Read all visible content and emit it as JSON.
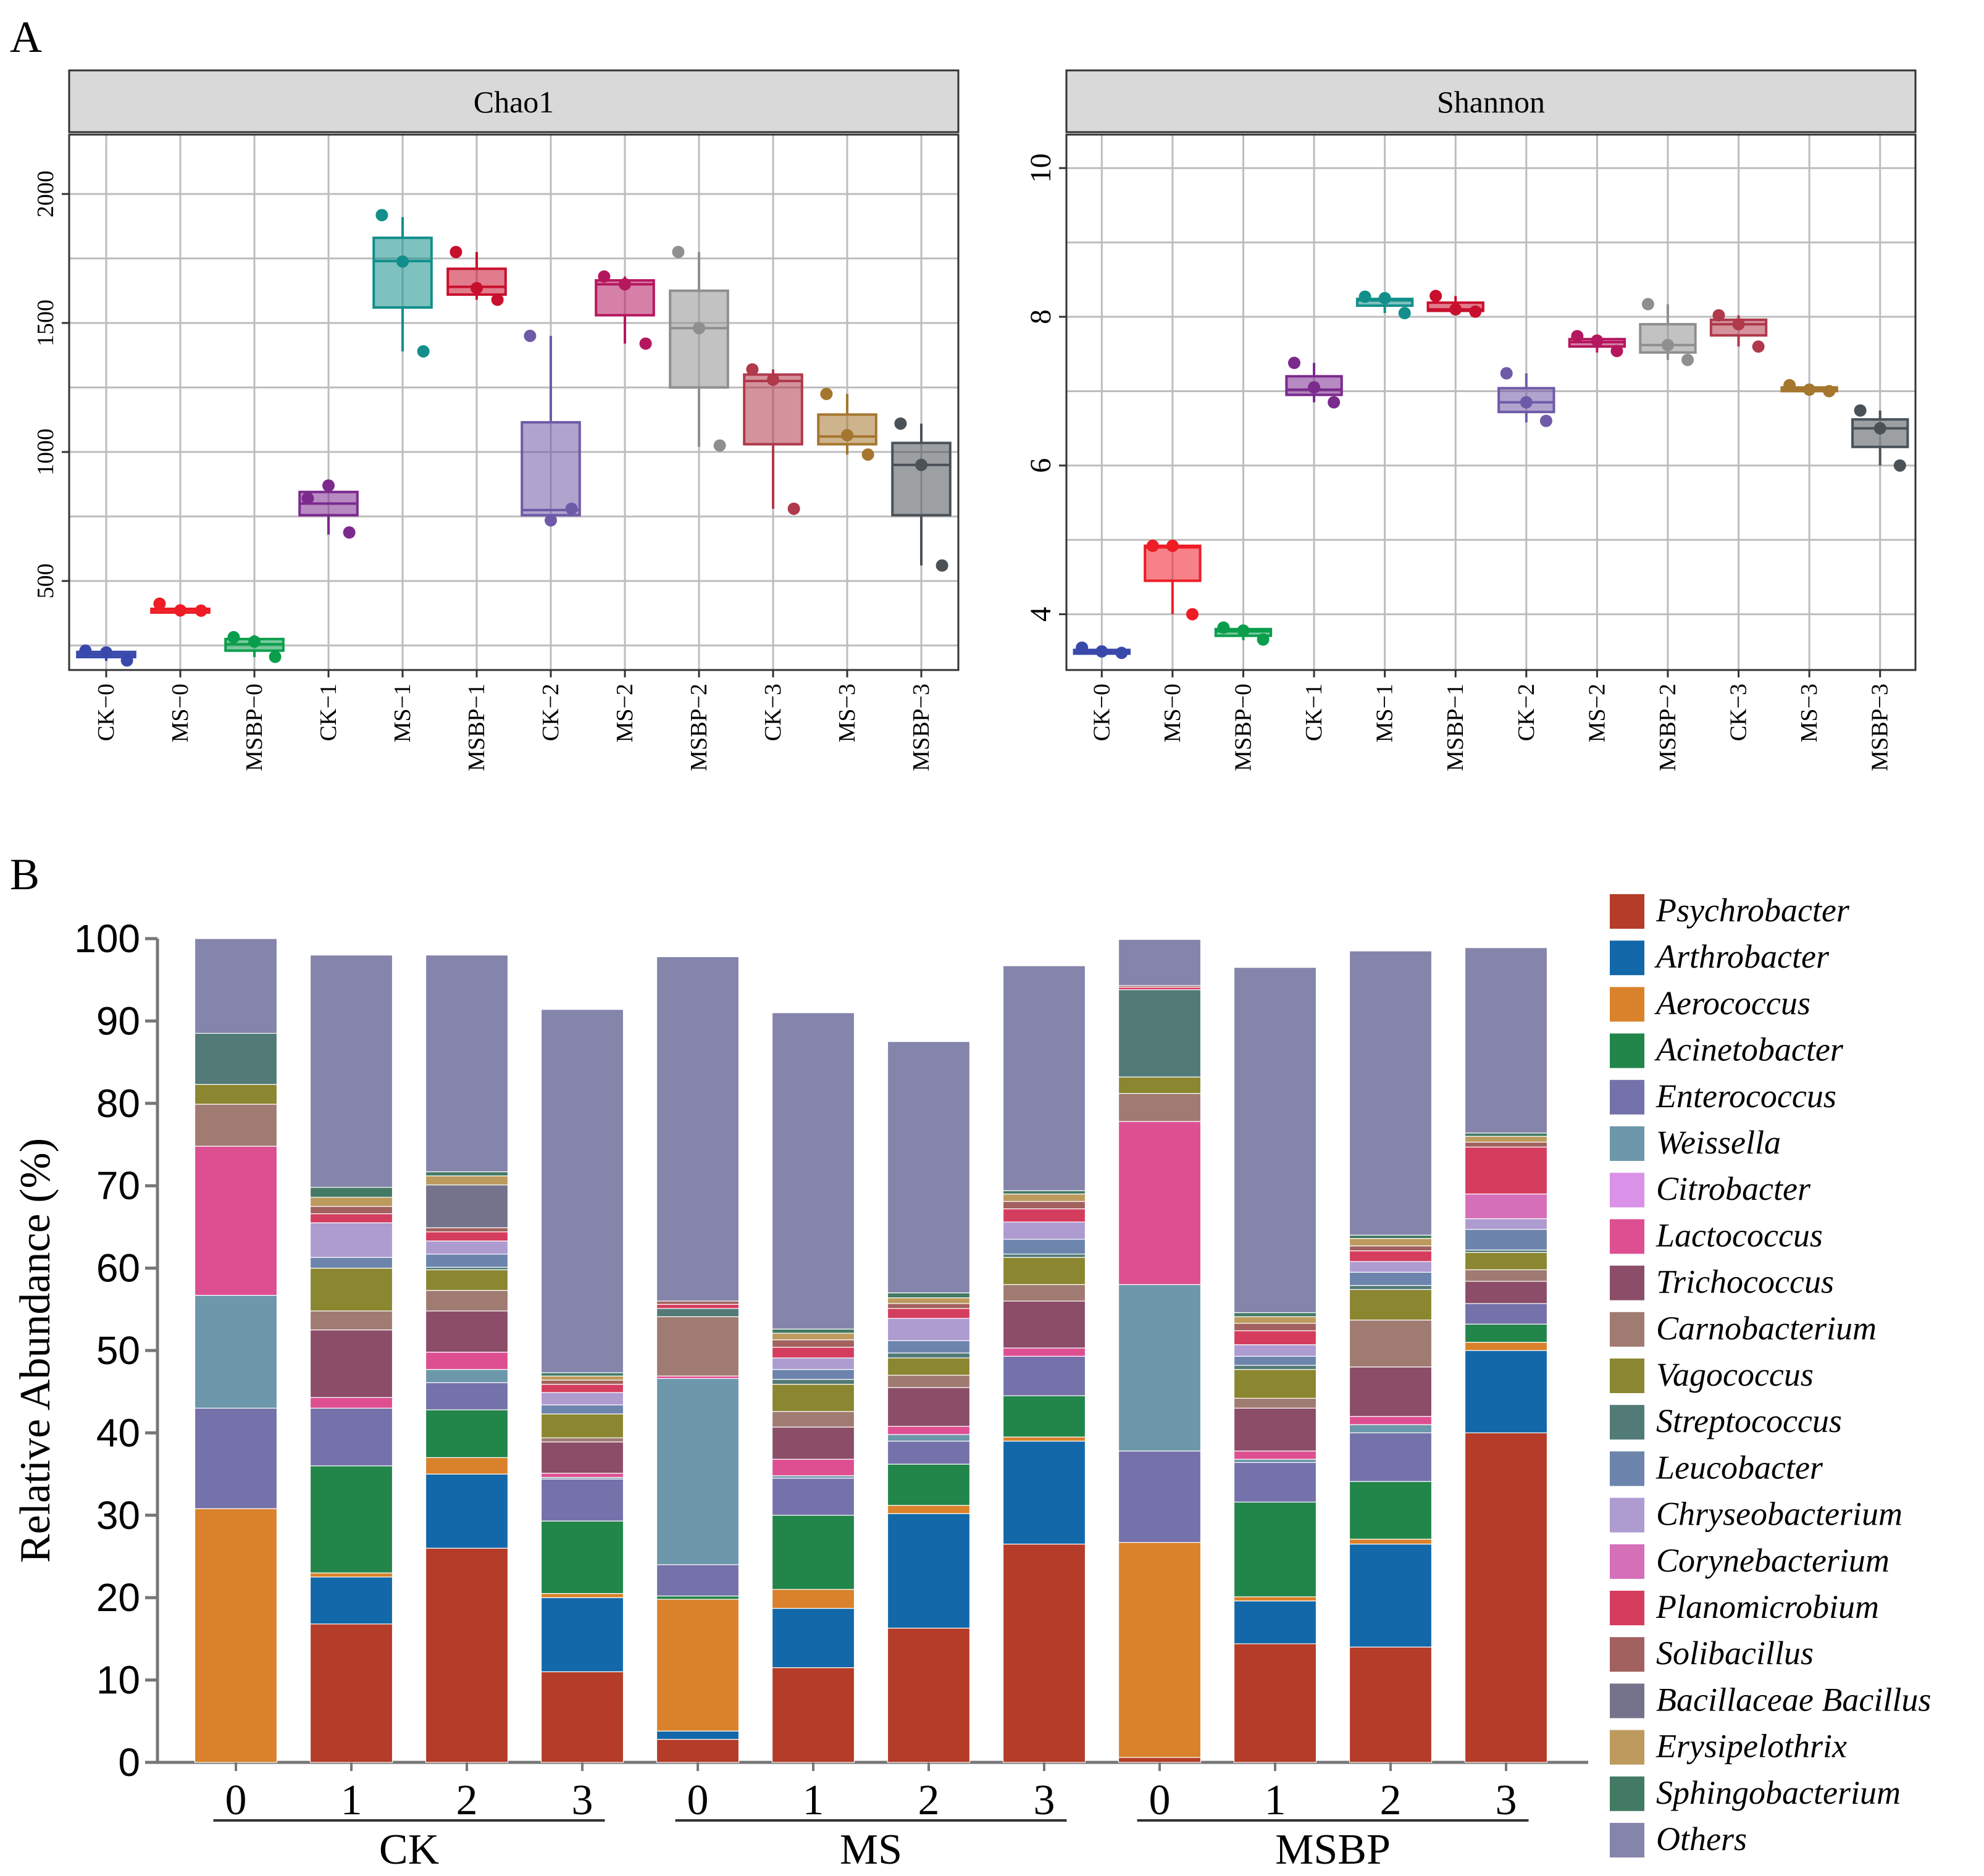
{
  "panels": {
    "a": "A",
    "b": "B"
  },
  "chart_data": [
    {
      "type": "box",
      "panel": "A",
      "title": "Chao1",
      "ylim": [
        155,
        2230
      ],
      "yticks": [
        500,
        1000,
        1500,
        2000
      ],
      "categories": [
        "CK−0",
        "MS−0",
        "MSBP−0",
        "CK−1",
        "MS−1",
        "MSBP−1",
        "CK−2",
        "MS−2",
        "MSBP−2",
        "CK−3",
        "MS−3",
        "MSBP−3"
      ],
      "colors": [
        "#3949ab",
        "#ee1c25",
        "#0a9e4c",
        "#7b2a8e",
        "#128f8a",
        "#c8102e",
        "#6f5aa8",
        "#b5175f",
        "#8f8f8f",
        "#b0394b",
        "#a5762e",
        "#4a5258"
      ],
      "boxes": [
        {
          "min": 190,
          "q1": 205,
          "median": 215,
          "q3": 225,
          "max": 230,
          "points": [
            230,
            192,
            223
          ]
        },
        {
          "min": 385,
          "q1": 385,
          "median": 388,
          "q3": 392,
          "max": 410,
          "points": [
            412,
            385,
            386
          ]
        },
        {
          "min": 205,
          "q1": 230,
          "median": 255,
          "q3": 275,
          "max": 290,
          "points": [
            282,
            206,
            265
          ]
        },
        {
          "min": 680,
          "q1": 755,
          "median": 800,
          "q3": 845,
          "max": 870,
          "points": [
            820,
            688,
            870
          ]
        },
        {
          "min": 1390,
          "q1": 1560,
          "median": 1740,
          "q3": 1830,
          "max": 1910,
          "points": [
            1918,
            1390,
            1738
          ]
        },
        {
          "min": 1590,
          "q1": 1610,
          "median": 1640,
          "q3": 1710,
          "max": 1775,
          "points": [
            1775,
            1590,
            1635
          ]
        },
        {
          "min": 730,
          "q1": 755,
          "median": 775,
          "q3": 1115,
          "max": 1450,
          "points": [
            1450,
            780,
            735
          ]
        },
        {
          "min": 1420,
          "q1": 1530,
          "median": 1650,
          "q3": 1665,
          "max": 1680,
          "points": [
            1680,
            1420,
            1650
          ]
        },
        {
          "min": 1020,
          "q1": 1250,
          "median": 1480,
          "q3": 1625,
          "max": 1775,
          "points": [
            1775,
            1025,
            1480
          ]
        },
        {
          "min": 780,
          "q1": 1030,
          "median": 1275,
          "q3": 1300,
          "max": 1320,
          "points": [
            1320,
            780,
            1280
          ]
        },
        {
          "min": 990,
          "q1": 1030,
          "median": 1060,
          "q3": 1145,
          "max": 1225,
          "points": [
            1225,
            990,
            1065
          ]
        },
        {
          "min": 560,
          "q1": 755,
          "median": 950,
          "q3": 1035,
          "max": 1110,
          "points": [
            1110,
            560,
            950
          ]
        }
      ]
    },
    {
      "type": "box",
      "panel": "A",
      "title": "Shannon",
      "ylim": [
        3.25,
        10.45
      ],
      "yticks": [
        4,
        6,
        8,
        10
      ],
      "categories": [
        "CK−0",
        "MS−0",
        "MSBP−0",
        "CK−1",
        "MS−1",
        "MSBP−1",
        "CK−2",
        "MS−2",
        "MSBP−2",
        "CK−3",
        "MS−3",
        "MSBP−3"
      ],
      "colors": [
        "#3949ab",
        "#ee1c25",
        "#0a9e4c",
        "#7b2a8e",
        "#128f8a",
        "#c8102e",
        "#6f5aa8",
        "#b5175f",
        "#8f8f8f",
        "#b0394b",
        "#a5762e",
        "#4a5258"
      ],
      "boxes": [
        {
          "min": 3.48,
          "q1": 3.49,
          "median": 3.5,
          "q3": 3.52,
          "max": 3.55,
          "points": [
            3.55,
            3.48,
            3.5
          ]
        },
        {
          "min": 4.0,
          "q1": 4.45,
          "median": 4.9,
          "q3": 4.92,
          "max": 4.92,
          "points": [
            4.92,
            4.0,
            4.92
          ]
        },
        {
          "min": 3.65,
          "q1": 3.71,
          "median": 3.77,
          "q3": 3.8,
          "max": 3.82,
          "points": [
            3.82,
            3.66,
            3.78
          ]
        },
        {
          "min": 6.85,
          "q1": 6.95,
          "median": 7.02,
          "q3": 7.2,
          "max": 7.38,
          "points": [
            7.38,
            6.85,
            7.05
          ]
        },
        {
          "min": 8.05,
          "q1": 8.15,
          "median": 8.22,
          "q3": 8.24,
          "max": 8.27,
          "points": [
            8.27,
            8.05,
            8.25
          ]
        },
        {
          "min": 8.07,
          "q1": 8.08,
          "median": 8.1,
          "q3": 8.19,
          "max": 8.28,
          "points": [
            8.28,
            8.07,
            8.1
          ]
        },
        {
          "min": 6.58,
          "q1": 6.72,
          "median": 6.85,
          "q3": 7.04,
          "max": 7.24,
          "points": [
            7.24,
            6.6,
            6.85
          ]
        },
        {
          "min": 7.52,
          "q1": 7.6,
          "median": 7.66,
          "q3": 7.7,
          "max": 7.74,
          "points": [
            7.74,
            7.54,
            7.68
          ]
        },
        {
          "min": 7.42,
          "q1": 7.52,
          "median": 7.62,
          "q3": 7.9,
          "max": 8.17,
          "points": [
            8.17,
            7.42,
            7.62
          ]
        },
        {
          "min": 7.6,
          "q1": 7.75,
          "median": 7.9,
          "q3": 7.96,
          "max": 8.02,
          "points": [
            8.02,
            7.6,
            7.9
          ]
        },
        {
          "min": 7.0,
          "q1": 7.02,
          "median": 7.03,
          "q3": 7.05,
          "max": 7.08,
          "points": [
            7.08,
            7.0,
            7.02
          ]
        },
        {
          "min": 6.0,
          "q1": 6.25,
          "median": 6.5,
          "q3": 6.62,
          "max": 6.74,
          "points": [
            6.74,
            6.0,
            6.5
          ]
        }
      ]
    },
    {
      "type": "stacked_bar",
      "panel": "B",
      "ylabel": "Relative Abundance (%)",
      "ylim": [
        0,
        100
      ],
      "yticks": [
        0,
        10,
        20,
        30,
        40,
        50,
        60,
        70,
        80,
        90,
        100
      ],
      "categories": [
        "0",
        "1",
        "2",
        "3",
        "0",
        "1",
        "2",
        "3",
        "0",
        "1",
        "2",
        "3"
      ],
      "groups": [
        {
          "label": "CK",
          "span": [
            0,
            3
          ]
        },
        {
          "label": "MS",
          "span": [
            4,
            7
          ]
        },
        {
          "label": "MSBP",
          "span": [
            8,
            11
          ]
        }
      ],
      "series": [
        {
          "name": "Psychrobacter",
          "color": "#b43c28",
          "values": [
            0,
            16.8,
            26,
            11,
            2.8,
            11.5,
            16.3,
            26.5,
            0.6,
            14.4,
            14,
            40
          ]
        },
        {
          "name": "Arthrobacter",
          "color": "#1368a9",
          "values": [
            0,
            5.7,
            9,
            9,
            1,
            7.2,
            13.9,
            12.5,
            0,
            5.2,
            12.5,
            10
          ]
        },
        {
          "name": "Aerococcus",
          "color": "#d9822b",
          "values": [
            30.8,
            0.5,
            2,
            0.5,
            16,
            2.3,
            1,
            0.5,
            26.1,
            0.5,
            0.6,
            1
          ]
        },
        {
          "name": "Acinetobacter",
          "color": "#22854a",
          "values": [
            0,
            13,
            5.8,
            8.8,
            0.4,
            9,
            5,
            5,
            0,
            11.5,
            7,
            2.2
          ]
        },
        {
          "name": "Enterococcus",
          "color": "#7571aa",
          "values": [
            12.2,
            7,
            3.3,
            5.1,
            3.8,
            4.5,
            2.8,
            4.8,
            11.1,
            4.8,
            5.9,
            2.5
          ]
        },
        {
          "name": "Weissella",
          "color": "#6d97aa",
          "values": [
            13.7,
            0,
            1.6,
            0.2,
            22.6,
            0.3,
            0.8,
            0,
            20.2,
            0.4,
            1,
            0
          ]
        },
        {
          "name": "Citrobacter",
          "color": "#da92e8",
          "values": [
            0,
            0,
            0,
            0,
            0,
            0,
            0,
            0,
            0,
            0,
            0,
            0
          ]
        },
        {
          "name": "Lactococcus",
          "color": "#de4f92",
          "values": [
            18.1,
            1.3,
            2.1,
            0.5,
            0.3,
            2,
            1,
            1,
            19.8,
            1,
            1,
            0
          ]
        },
        {
          "name": "Trichococcus",
          "color": "#8b4d68",
          "values": [
            0,
            8.2,
            5,
            3.8,
            0,
            3.9,
            4.7,
            5.7,
            0,
            5.2,
            6,
            2.7
          ]
        },
        {
          "name": "Carnobacterium",
          "color": "#a07b72",
          "values": [
            5.1,
            2.3,
            2.5,
            0.5,
            7.2,
            1.9,
            1.5,
            2,
            3.4,
            1.2,
            5.7,
            1.4
          ]
        },
        {
          "name": "Vagococcus",
          "color": "#8b8630",
          "values": [
            2.4,
            5.2,
            2.5,
            2.9,
            0,
            3.3,
            2.1,
            3.3,
            2,
            3.5,
            3.7,
            2.1
          ]
        },
        {
          "name": "Streptococcus",
          "color": "#527a77",
          "values": [
            6.2,
            0,
            0.3,
            0,
            1,
            0.6,
            0.6,
            0.4,
            10.6,
            0.5,
            0.5,
            0.3
          ]
        },
        {
          "name": "Leucobacter",
          "color": "#6d84ad",
          "values": [
            0,
            1.3,
            1.6,
            1.1,
            0,
            1.2,
            1.5,
            1.8,
            0,
            1.1,
            1.6,
            2.5
          ]
        },
        {
          "name": "Chryseobacterium",
          "color": "#ae9bd0",
          "values": [
            0,
            4.2,
            1.6,
            1.5,
            0,
            1.4,
            2.7,
            2.1,
            0,
            1.4,
            1.3,
            1.3
          ]
        },
        {
          "name": "Corynebacterium",
          "color": "#d46fb8",
          "values": [
            0,
            0,
            0,
            0,
            0,
            0,
            0,
            0,
            0,
            0,
            0,
            3
          ]
        },
        {
          "name": "Planomicrobium",
          "color": "#d53d5e",
          "values": [
            0,
            1.1,
            1.1,
            1,
            0.5,
            1.3,
            1.2,
            1.6,
            0.3,
            1.7,
            1.3,
            5.7
          ]
        },
        {
          "name": "Solibacillus",
          "color": "#a2615e",
          "values": [
            0,
            0.9,
            0.5,
            0.5,
            0.4,
            0.9,
            0.6,
            0.9,
            0.2,
            0.9,
            0.6,
            0.6
          ]
        },
        {
          "name": "Bacillaceae Bacillus",
          "color": "#75738c",
          "values": [
            0,
            0,
            5.2,
            0,
            0,
            0,
            0,
            0,
            0,
            0,
            0,
            0
          ]
        },
        {
          "name": "Erysipelothrix",
          "color": "#bd9a5d",
          "values": [
            0,
            1.1,
            1.1,
            0.5,
            0,
            0.8,
            0.7,
            0.9,
            0,
            0.8,
            0.9,
            0.7
          ]
        },
        {
          "name": "Sphingobacterium",
          "color": "#437a63",
          "values": [
            0,
            1.2,
            0.5,
            0.4,
            0,
            0.5,
            0.6,
            0.4,
            0,
            0.5,
            0.4,
            0.4
          ]
        },
        {
          "name": "Others",
          "color": "#8585ab",
          "values": [
            11.5,
            28.2,
            26.3,
            44.1,
            41.8,
            38.4,
            30.5,
            27.3,
            5.6,
            41.9,
            34.5,
            22.5
          ]
        }
      ]
    }
  ]
}
